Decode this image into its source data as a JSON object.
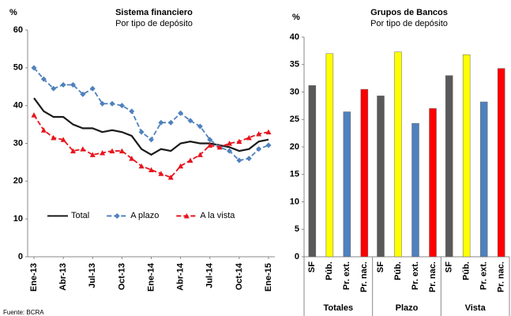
{
  "chart_data": [
    {
      "type": "line",
      "title": "Sistema financiero",
      "subtitle": "Por tipo de depósito",
      "ylabel": "%",
      "source": "Fuente: BCRA",
      "categories": [
        "Ene-13",
        null,
        null,
        "Abr-13",
        null,
        null,
        "Jul-13",
        null,
        null,
        "Oct-13",
        null,
        null,
        "Ene-14",
        null,
        null,
        "Abr-14",
        null,
        null,
        "Jul-14",
        null,
        null,
        "Oct-14",
        null,
        null,
        "Ene-15"
      ],
      "series": [
        {
          "name": "Total",
          "color": "#1a1a1a",
          "dashed": false,
          "marker": "none",
          "values": [
            42,
            38.5,
            37,
            37,
            35,
            34,
            34,
            33,
            33.5,
            33,
            32,
            28.5,
            27,
            28.5,
            28,
            30,
            30.5,
            30,
            30,
            29.5,
            29,
            28,
            28.5,
            30.5,
            31
          ]
        },
        {
          "name": "A plazo",
          "color": "#4f81bd",
          "dashed": true,
          "marker": "diamond",
          "values": [
            50,
            47,
            44.5,
            45.5,
            45.5,
            43,
            44.5,
            40.5,
            40.5,
            40,
            38.5,
            33,
            31,
            35.5,
            35.5,
            38,
            36,
            34.5,
            31,
            29,
            28,
            25.5,
            26,
            28.5,
            29.5
          ]
        },
        {
          "name": "A la vista",
          "color": "#e8141c",
          "dashed": true,
          "marker": "triangle",
          "values": [
            37.5,
            33.5,
            31.5,
            31,
            28,
            28.5,
            27,
            27.5,
            28,
            28,
            26,
            24,
            23,
            22,
            21,
            24,
            25.5,
            27,
            29.5,
            29,
            30,
            30.5,
            31.5,
            32.5,
            33
          ]
        }
      ],
      "ylim": [
        0,
        60
      ],
      "yticks": [
        0,
        10,
        20,
        30,
        40,
        50,
        60
      ],
      "legend": "lower center",
      "grid": false
    },
    {
      "type": "grouped-bar",
      "title": "Grupos de Bancos",
      "subtitle": "Por tipo de depósito",
      "ylabel": "%",
      "categories": [
        "Totales",
        "Plazo",
        "Vista"
      ],
      "series": [
        {
          "name": "SF",
          "color": "#595959",
          "values": [
            31.2,
            29.3,
            33
          ]
        },
        {
          "name": "Púb.",
          "color": "#ffff00",
          "values": [
            37,
            37.3,
            36.8
          ]
        },
        {
          "name": "Pr. ext.",
          "color": "#4f81bd",
          "values": [
            26.4,
            24.3,
            28.2
          ]
        },
        {
          "name": "Pr. nac.",
          "color": "#ff0000",
          "values": [
            30.5,
            27,
            34.3
          ]
        }
      ],
      "ylim": [
        0,
        40
      ],
      "yticks": [
        0,
        5,
        10,
        15,
        20,
        25,
        30,
        35,
        40
      ],
      "grid": false
    }
  ]
}
